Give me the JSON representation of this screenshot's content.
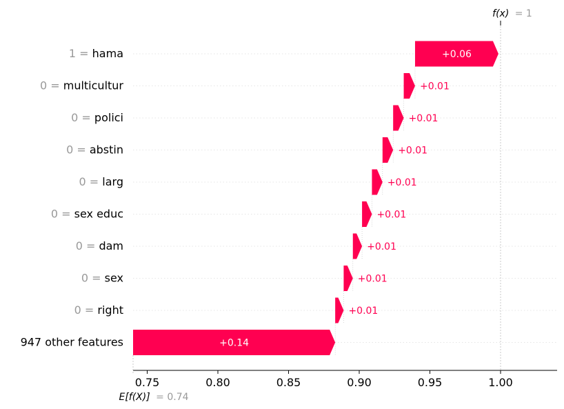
{
  "chart_data": {
    "type": "waterfall",
    "base_value": 0.74,
    "output_value": 1,
    "base_label_func": "E[f(X)]",
    "base_label_value": "= 0.74",
    "output_label_func": "f(x)",
    "output_label_value": "= 1",
    "xlim": [
      0.74,
      1.04
    ],
    "x_ticks": [
      {
        "value": 0.75,
        "label": "0.75"
      },
      {
        "value": 0.8,
        "label": "0.80"
      },
      {
        "value": 0.85,
        "label": "0.85"
      },
      {
        "value": 0.9,
        "label": "0.90"
      },
      {
        "value": 0.95,
        "label": "0.95"
      },
      {
        "value": 1.0,
        "label": "1.00"
      }
    ],
    "features": [
      {
        "value_label": "1 =",
        "name": "hama",
        "start": 0.9395,
        "end": 0.9985,
        "label": "+0.06"
      },
      {
        "value_label": "0 =",
        "name": "multicultur",
        "start": 0.9315,
        "end": 0.9395,
        "label": "+0.01"
      },
      {
        "value_label": "0 =",
        "name": "polici",
        "start": 0.924,
        "end": 0.9315,
        "label": "+0.01"
      },
      {
        "value_label": "0 =",
        "name": "abstin",
        "start": 0.9165,
        "end": 0.924,
        "label": "+0.01"
      },
      {
        "value_label": "0 =",
        "name": "larg",
        "start": 0.909,
        "end": 0.9165,
        "label": "+0.01"
      },
      {
        "value_label": "0 =",
        "name": "sex educ",
        "start": 0.902,
        "end": 0.909,
        "label": "+0.01"
      },
      {
        "value_label": "0 =",
        "name": "dam",
        "start": 0.8955,
        "end": 0.902,
        "label": "+0.01"
      },
      {
        "value_label": "0 =",
        "name": "sex",
        "start": 0.889,
        "end": 0.8955,
        "label": "+0.01"
      },
      {
        "value_label": "0 =",
        "name": "right",
        "start": 0.883,
        "end": 0.889,
        "label": "+0.01"
      },
      {
        "value_label": "",
        "name": "947 other features",
        "start": 0.74,
        "end": 0.883,
        "label": "+0.14"
      }
    ],
    "colors": {
      "positive": "#ff0051",
      "label_inside": "#ffffff",
      "value_grey": "#999999",
      "grid": "#dddddd"
    }
  }
}
